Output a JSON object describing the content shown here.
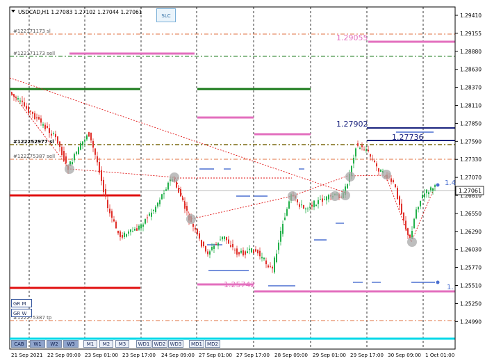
{
  "window": {
    "header_text": "USDCAD,H1  1.27083 1.27102 1.27044 1.27061",
    "slc_button": "SLC"
  },
  "price_axis": {
    "ticks": [
      "1.29410",
      "1.29155",
      "1.28880",
      "1.28630",
      "1.28370",
      "1.28110",
      "1.27850",
      "1.27590",
      "1.27330",
      "1.27070",
      "1.26810",
      "1.26550",
      "1.26290",
      "1.26030",
      "1.25770",
      "1.25510",
      "1.25250",
      "1.24990"
    ],
    "current_price": "1.27061"
  },
  "time_axis": {
    "ticks": [
      "21 Sep 2021",
      "22 Sep 09:00",
      "23 Sep 01:00",
      "23 Sep 17:00",
      "24 Sep 09:00",
      "27 Sep 01:00",
      "27 Sep 17:00",
      "28 Sep 09:00",
      "29 Sep 01:00",
      "29 Sep 17:00",
      "30 Sep 09:00",
      "1 Oct 01:00"
    ]
  },
  "order_labels": [
    {
      "text": "#122171173 sl"
    },
    {
      "text": "#122171173 sell"
    },
    {
      "text": "#122252977 sl"
    },
    {
      "text": "#122275387 sell"
    },
    {
      "text": "#122275387 tp"
    }
  ],
  "level_labels": [
    {
      "text": "1.29055",
      "color": "#e36fbe"
    },
    {
      "text": "1.27902",
      "color": "#1a237e"
    },
    {
      "text": "1.27736",
      "color": "#1a237e"
    },
    {
      "text": "1.25742",
      "color": "#e36fbe"
    },
    {
      "text": "1.4",
      "color": "#4a6fd0"
    },
    {
      "text": "1.",
      "color": "#4a6fd0"
    }
  ],
  "gr_buttons": [
    {
      "label": "GR M"
    },
    {
      "label": "GR W"
    }
  ],
  "timeframe_buttons": [
    {
      "label": "CAB",
      "active": true
    },
    {
      "label": "W1",
      "active": true
    },
    {
      "label": "W2",
      "active": true
    },
    {
      "label": "W3",
      "active": true
    },
    {
      "label": "M1",
      "active": false
    },
    {
      "label": "M2",
      "active": false
    },
    {
      "label": "M3",
      "active": false
    },
    {
      "label": "WD1",
      "active": false
    },
    {
      "label": "WD2",
      "active": false
    },
    {
      "label": "WD3",
      "active": false
    },
    {
      "label": "MD1",
      "active": false
    },
    {
      "label": "MD2",
      "active": false
    }
  ],
  "colors": {
    "bull": "#22b04a",
    "bear": "#e0302a",
    "red_level": "#e01010",
    "green_level": "#1a7a1a",
    "pink_level": "#e36fbe",
    "navy_level": "#1a237e",
    "orange_dash": "#e07040",
    "cyan_bar": "#00d8e8"
  }
}
